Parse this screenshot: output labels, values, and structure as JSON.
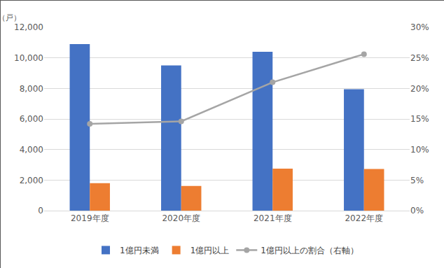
{
  "chart_data": {
    "type": "bar",
    "ylabel": "（戸）",
    "categories": [
      "2019年度",
      "2020年度",
      "2021年度",
      "2022年度"
    ],
    "series": [
      {
        "name": "1億円未満",
        "color": "#4472c4",
        "values": [
          10900,
          9500,
          10400,
          7950
        ]
      },
      {
        "name": "1億円以上",
        "color": "#ed7d31",
        "values": [
          1800,
          1620,
          2750,
          2720
        ]
      },
      {
        "name": "1億円以上の割合（右軸）",
        "type": "line",
        "axis": "y2",
        "color": "#a5a5a5",
        "marker": "circle",
        "line_style": "solid",
        "values": [
          14.2,
          14.6,
          21.0,
          25.6
        ]
      }
    ],
    "ylim": [
      0,
      12000
    ],
    "yticks": [
      0,
      {
        "value": 2000,
        "label": "2,000"
      },
      {
        "value": 4000,
        "label": "4,000"
      },
      {
        "value": 6000,
        "label": "6,000"
      },
      {
        "value": 8000,
        "label": "8,000"
      },
      {
        "value": 10000,
        "label": "10,000"
      },
      {
        "value": 12000,
        "label": "12,000"
      }
    ],
    "y2lim": [
      0,
      30
    ],
    "y2ticks": [
      {
        "value": 0,
        "label": "0%"
      },
      {
        "value": 5,
        "label": "5%"
      },
      {
        "value": 10,
        "label": "10%"
      },
      {
        "value": 15,
        "label": "15%"
      },
      {
        "value": 20,
        "label": "20%"
      },
      {
        "value": 25,
        "label": "25%"
      },
      {
        "value": 30,
        "label": "30%"
      }
    ],
    "grid": true,
    "legend": "bottom"
  }
}
